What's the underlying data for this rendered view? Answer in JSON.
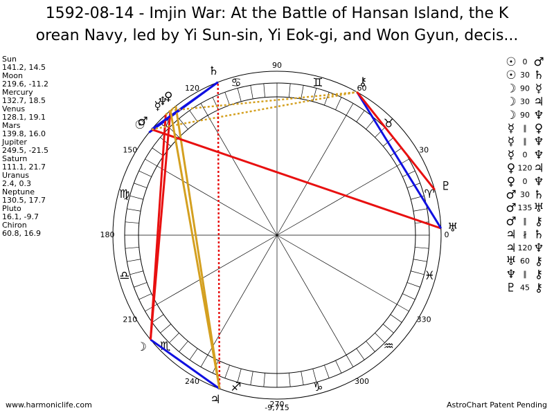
{
  "header": {
    "title_line1": "1592-08-14 - Imjin War: At the Battle of Hansan Island, the K",
    "title_line2": "orean Navy, led by Yi Sun-sin, Yi Eok-gi, and Won Gyun, decis..."
  },
  "planets": [
    {
      "name": "Sun",
      "glyph": "☉",
      "lon": 141.2,
      "lat": 14.5,
      "label": "141.2, 14.5"
    },
    {
      "name": "Moon",
      "glyph": "☽",
      "lon": 219.6,
      "lat": -11.2,
      "label": "219.6, -11.2"
    },
    {
      "name": "Mercury",
      "glyph": "☿",
      "lon": 132.7,
      "lat": 18.5,
      "label": "132.7, 18.5"
    },
    {
      "name": "Venus",
      "glyph": "♀",
      "lon": 128.1,
      "lat": 19.1,
      "label": "128.1, 19.1"
    },
    {
      "name": "Mars",
      "glyph": "♂",
      "lon": 139.8,
      "lat": 16.0,
      "label": "139.8, 16.0"
    },
    {
      "name": "Jupiter",
      "glyph": "♃",
      "lon": 249.5,
      "lat": -21.5,
      "label": "249.5, -21.5"
    },
    {
      "name": "Saturn",
      "glyph": "♄",
      "lon": 111.1,
      "lat": 21.7,
      "label": "111.1, 21.7"
    },
    {
      "name": "Uranus",
      "glyph": "♅",
      "lon": 2.4,
      "lat": 0.3,
      "label": "2.4, 0.3"
    },
    {
      "name": "Neptune",
      "glyph": "♆",
      "lon": 130.5,
      "lat": 17.7,
      "label": "130.5, 17.7"
    },
    {
      "name": "Pluto",
      "glyph": "♇",
      "lon": 16.1,
      "lat": -9.7,
      "label": "16.1, -9.7"
    },
    {
      "name": "Chiron",
      "glyph": "⚷",
      "lon": 60.8,
      "lat": 16.9,
      "label": "60.8, 16.9"
    }
  ],
  "aspects": [
    {
      "p1": "☉",
      "aspect": "0",
      "p2": "♂"
    },
    {
      "p1": "☉",
      "aspect": "30",
      "p2": "♄",
      "color": "#1010e0"
    },
    {
      "p1": "☽",
      "aspect": "90",
      "p2": "☿",
      "color": "#e81010"
    },
    {
      "p1": "☽",
      "aspect": "30",
      "p2": "♃",
      "color": "#1010e0"
    },
    {
      "p1": "☽",
      "aspect": "90",
      "p2": "♆",
      "color": "#e81010"
    },
    {
      "p1": "☿",
      "aspect": "∥",
      "p2": "♀",
      "color": "#d4a020",
      "dash": true
    },
    {
      "p1": "☿",
      "aspect": "∥",
      "p2": "♆",
      "color": "#d4a020",
      "dash": true
    },
    {
      "p1": "☿",
      "aspect": "0",
      "p2": "♆"
    },
    {
      "p1": "♀",
      "aspect": "120",
      "p2": "♃",
      "color": "#d4a020"
    },
    {
      "p1": "♀",
      "aspect": "0",
      "p2": "♆"
    },
    {
      "p1": "♂",
      "aspect": "30",
      "p2": "♄",
      "color": "#1010e0"
    },
    {
      "p1": "♂",
      "aspect": "135",
      "p2": "♅",
      "color": "#e81010"
    },
    {
      "p1": "♂",
      "aspect": "∥",
      "p2": "⚷",
      "color": "#d4a020",
      "dash": true
    },
    {
      "p1": "♃",
      "aspect": "∦",
      "p2": "♄",
      "color": "#e81010",
      "dash": true
    },
    {
      "p1": "♃",
      "aspect": "120",
      "p2": "♆",
      "color": "#d4a020"
    },
    {
      "p1": "♅",
      "aspect": "60",
      "p2": "⚷",
      "color": "#1010e0"
    },
    {
      "p1": "♆",
      "aspect": "∥",
      "p2": "⚷",
      "color": "#d4a020",
      "dash": true
    },
    {
      "p1": "♇",
      "aspect": "45",
      "p2": "⚷",
      "color": "#e81010"
    }
  ],
  "signs": [
    "♈",
    "♉",
    "♊",
    "♋",
    "♌",
    "♍",
    "♎",
    "♏",
    "♐",
    "♑",
    "♒",
    "♓"
  ],
  "degree_labels": [
    0,
    30,
    60,
    90,
    120,
    150,
    180,
    210,
    240,
    270,
    300,
    330
  ],
  "footer": {
    "left": "www.harmoniclife.com",
    "center": "-9,715",
    "right": "AstroChart Patent Pending"
  }
}
